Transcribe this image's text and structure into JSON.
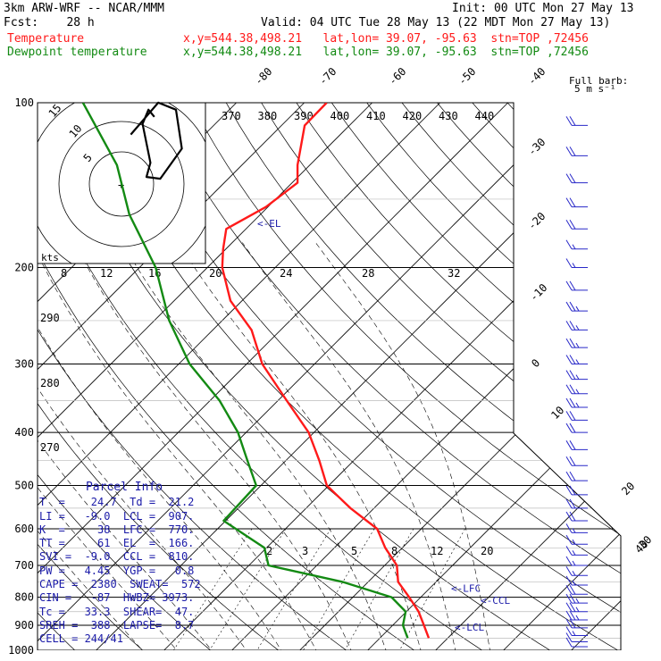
{
  "header": {
    "model": "3km ARW-WRF -- NCAR/MMM",
    "init": "Init: 00 UTC Mon 27 May 13",
    "fcst": "Fcst:    28 h",
    "valid": "Valid: 04 UTC Tue 28 May 13 (22 MDT Mon 27 May 13)",
    "temp_label": "Temperature",
    "temp_info": "x,y=544.38,498.21   lat,lon= 39.07, -95.63  stn=TOP ,72456",
    "dew_label": "Dewpoint temperature",
    "dew_info": "x,y=544.38,498.21   lat,lon= 39.07, -95.63  stn=TOP ,72456"
  },
  "colors": {
    "temperature": "#ff1a1a",
    "dewpoint": "#138a13",
    "parcel_text": "#1a1aa8",
    "barbs": "#2828c8"
  },
  "barb_legend": {
    "line1": "Full barb:",
    "line2": "5 m s⁻¹"
  },
  "hodograph": {
    "units_label": "kts",
    "ring_labels": [
      "5",
      "10",
      "15"
    ],
    "center_marker": "+",
    "trace": [
      [
        -18,
        -28
      ],
      [
        -4,
        -46
      ],
      [
        5,
        -42
      ],
      [
        8,
        -20
      ],
      [
        -3,
        -3
      ],
      [
        -10,
        -4
      ],
      [
        -8,
        -12
      ],
      [
        -12,
        -34
      ],
      [
        -9,
        -42
      ],
      [
        -6,
        -38
      ]
    ]
  },
  "chart_data": {
    "type": "skew-t log-p sounding",
    "y_axis": "pressure (hPa)",
    "pressure_levels": [
      100,
      200,
      300,
      400,
      500,
      600,
      700,
      800,
      900,
      1000
    ],
    "temperature_ticks": [
      -80,
      -70,
      -60,
      -50,
      -40,
      -30,
      -20,
      -10,
      0,
      10,
      20,
      30,
      40
    ],
    "theta_e_labels": [
      370,
      380,
      390,
      400,
      410,
      420,
      430,
      440
    ],
    "mixing_ratio_labels": [
      "8",
      "12",
      "16",
      "20",
      "24",
      "28",
      "32"
    ],
    "mixing_ratio_labels_low": [
      "2",
      "3",
      "5",
      "8",
      "12",
      "20"
    ],
    "dry_adiabat_labels": [
      "290",
      "280",
      "270"
    ],
    "series": [
      {
        "name": "Temperature",
        "points": [
          [
            100,
            -66.7
          ],
          [
            110,
            -66.6
          ],
          [
            130,
            -61.8
          ],
          [
            140,
            -59.2
          ],
          [
            155,
            -60.3
          ],
          [
            170,
            -62.9
          ],
          [
            185,
            -60.4
          ],
          [
            200,
            -57.8
          ],
          [
            230,
            -51.7
          ],
          [
            260,
            -44.3
          ],
          [
            300,
            -37.7
          ],
          [
            350,
            -28.7
          ],
          [
            400,
            -20.8
          ],
          [
            450,
            -15.1
          ],
          [
            500,
            -10.3
          ],
          [
            550,
            -3.5
          ],
          [
            600,
            3.5
          ],
          [
            650,
            7.5
          ],
          [
            700,
            11.8
          ],
          [
            750,
            14.4
          ],
          [
            800,
            18.3
          ],
          [
            850,
            21.8
          ],
          [
            900,
            24.6
          ],
          [
            950,
            27.2
          ]
        ]
      },
      {
        "name": "Dewpoint temperature",
        "points": [
          [
            100,
            -102.6
          ],
          [
            130,
            -88.4
          ],
          [
            160,
            -79.3
          ],
          [
            200,
            -67.6
          ],
          [
            250,
            -57.8
          ],
          [
            300,
            -48.4
          ],
          [
            350,
            -38.6
          ],
          [
            400,
            -31.2
          ],
          [
            450,
            -25.7
          ],
          [
            500,
            -20.7
          ],
          [
            580,
            -20.3
          ],
          [
            650,
            -10.3
          ],
          [
            700,
            -7.1
          ],
          [
            750,
            6.2
          ],
          [
            800,
            15.7
          ],
          [
            850,
            19.9
          ],
          [
            900,
            21.5
          ],
          [
            950,
            24.1
          ]
        ]
      }
    ],
    "annotations": [
      {
        "label": "<-EL",
        "pressure": 166
      },
      {
        "label": "<-LFC",
        "pressure": 770
      },
      {
        "label": "<-CCL",
        "pressure": 810
      },
      {
        "label": "<-LCL",
        "pressure": 907
      }
    ],
    "wind_barbs": [
      {
        "p": 110,
        "speed": 20
      },
      {
        "p": 125,
        "speed": 20
      },
      {
        "p": 140,
        "speed": 20
      },
      {
        "p": 155,
        "speed": 20
      },
      {
        "p": 170,
        "speed": 20
      },
      {
        "p": 185,
        "speed": 15
      },
      {
        "p": 200,
        "speed": 15
      },
      {
        "p": 220,
        "speed": 20
      },
      {
        "p": 240,
        "speed": 25
      },
      {
        "p": 260,
        "speed": 25
      },
      {
        "p": 280,
        "speed": 25
      },
      {
        "p": 300,
        "speed": 25
      },
      {
        "p": 320,
        "speed": 25
      },
      {
        "p": 340,
        "speed": 25
      },
      {
        "p": 360,
        "speed": 25
      },
      {
        "p": 380,
        "speed": 20
      },
      {
        "p": 400,
        "speed": 20
      },
      {
        "p": 430,
        "speed": 20
      },
      {
        "p": 460,
        "speed": 20
      },
      {
        "p": 490,
        "speed": 20
      },
      {
        "p": 520,
        "speed": 20
      },
      {
        "p": 550,
        "speed": 20
      },
      {
        "p": 580,
        "speed": 20
      },
      {
        "p": 610,
        "speed": 15
      },
      {
        "p": 640,
        "speed": 15
      },
      {
        "p": 670,
        "speed": 15
      },
      {
        "p": 700,
        "speed": 15
      },
      {
        "p": 730,
        "speed": 15
      },
      {
        "p": 760,
        "speed": 15
      },
      {
        "p": 790,
        "speed": 20
      },
      {
        "p": 820,
        "speed": 25
      },
      {
        "p": 850,
        "speed": 25
      },
      {
        "p": 880,
        "speed": 25
      },
      {
        "p": 910,
        "speed": 20
      },
      {
        "p": 940,
        "speed": 15
      },
      {
        "p": 965,
        "speed": 10
      },
      {
        "p": 985,
        "speed": 10
      }
    ]
  },
  "parcel_info": {
    "title": "Parcel Info",
    "rows": [
      "T  =    24.7  Td =  21.2",
      "LI =   -9.0  LCL =  907.",
      "K  =     38  LFC =  770.",
      "TT =     61  EL  =  166.",
      "SVI =  -9.0  CCL =  810.",
      "PW =   4.45  YGP =   0.8",
      "CAPE =  2380  SWEAT=  572",
      "CIN =   -87  HWBZ= 3973.",
      "Tc =   33.3  SHEAR=  47.",
      "SREH =  388  LAPSE=  8.7",
      "CELL = 244/41"
    ]
  }
}
